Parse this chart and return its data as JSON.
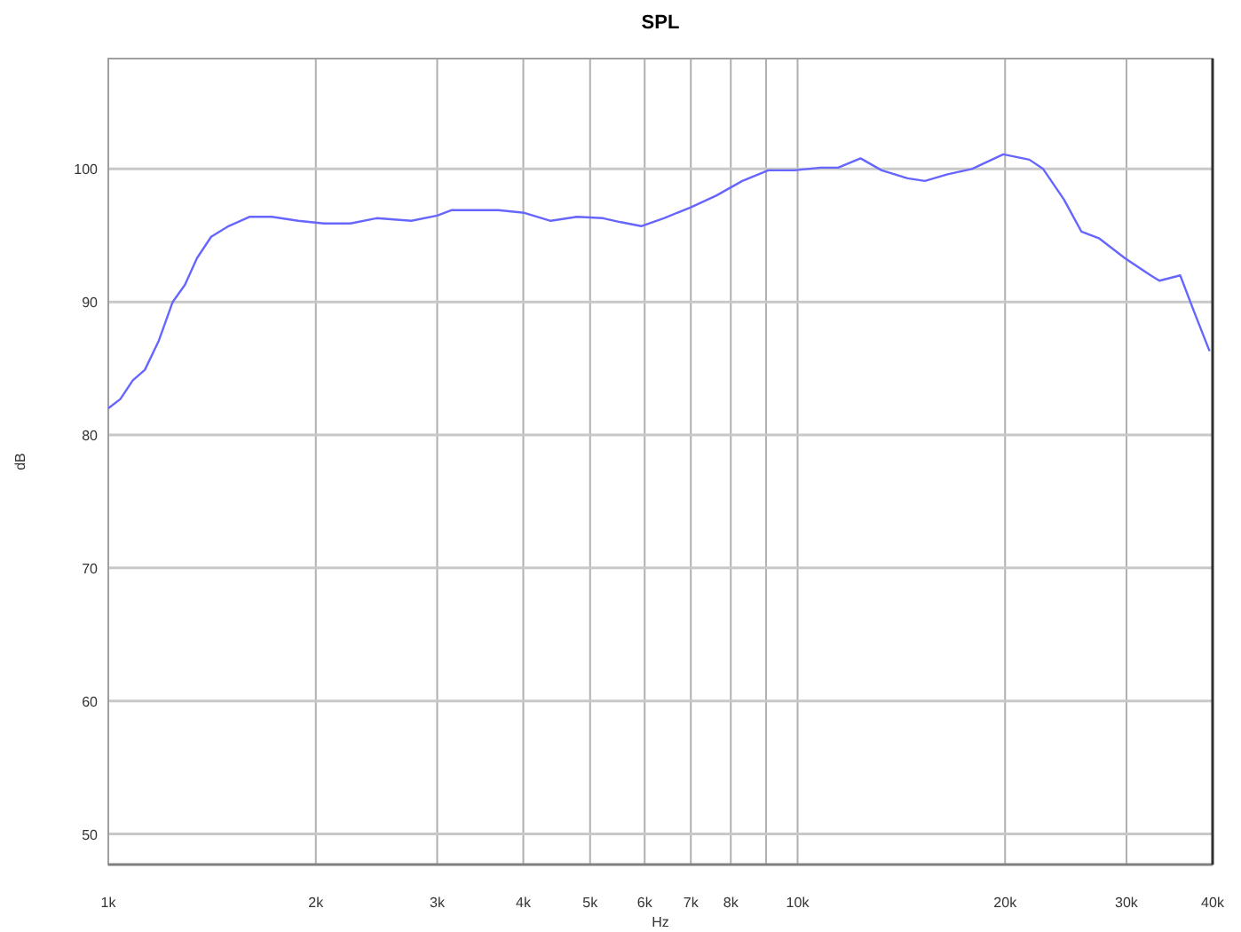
{
  "chart_data": {
    "type": "line",
    "title": "SPL",
    "xlabel": "Hz",
    "ylabel": "dB",
    "log": "x",
    "grid": true,
    "marker": "none",
    "line_style": "solid",
    "xlim": [
      1000,
      40000
    ],
    "xticks": [
      {
        "value": 1000,
        "label": "1k"
      },
      {
        "value": 2000,
        "label": "2k"
      },
      {
        "value": 3000,
        "label": "3k"
      },
      {
        "value": 4000,
        "label": "4k"
      },
      {
        "value": 5000,
        "label": "5k"
      },
      {
        "value": 6000,
        "label": "6k"
      },
      {
        "value": 7000,
        "label": "7k"
      },
      {
        "value": 8000,
        "label": "8k"
      },
      {
        "value": 9000,
        "label": null
      },
      {
        "value": 10000,
        "label": "10k"
      },
      {
        "value": 20000,
        "label": "20k"
      },
      {
        "value": 30000,
        "label": "30k"
      },
      {
        "value": 40000,
        "label": "40k"
      }
    ],
    "ylim": [
      47.7,
      108.3
    ],
    "yticks": [
      50,
      60,
      70,
      80,
      90,
      100
    ],
    "series": [
      {
        "color": "#6666ff",
        "x": [
          1000,
          1041,
          1085,
          1130,
          1184,
          1240,
          1292,
          1345,
          1410,
          1494,
          1602,
          1727,
          1886,
          2055,
          2245,
          2450,
          2752,
          3000,
          3145,
          3373,
          3680,
          4015,
          4384,
          4785,
          5220,
          5540,
          5930,
          6397,
          6987,
          7620,
          8313,
          9068,
          9895,
          10800,
          11450,
          12340,
          13240,
          14440,
          15300,
          16500,
          17900,
          19880,
          21690,
          22710,
          24350,
          25800,
          27350,
          29830,
          32530,
          33490,
          35900,
          37580,
          39600
        ],
        "values": [
          82,
          82.7,
          84.1,
          84.9,
          87.1,
          90,
          91.3,
          93.3,
          94.9,
          95.7,
          96.4,
          96.4,
          96.1,
          95.9,
          95.9,
          96.3,
          96.1,
          96.5,
          96.9,
          96.9,
          96.9,
          96.7,
          96.1,
          96.4,
          96.3,
          96,
          95.7,
          96.3,
          97.1,
          98,
          99.1,
          99.9,
          99.9,
          100.1,
          100.1,
          100.8,
          99.9,
          99.3,
          99.1,
          99.6,
          100,
          101.1,
          100.7,
          100,
          97.7,
          95.3,
          94.8,
          93.3,
          92,
          91.6,
          92,
          89.3,
          86.3
        ]
      }
    ]
  }
}
